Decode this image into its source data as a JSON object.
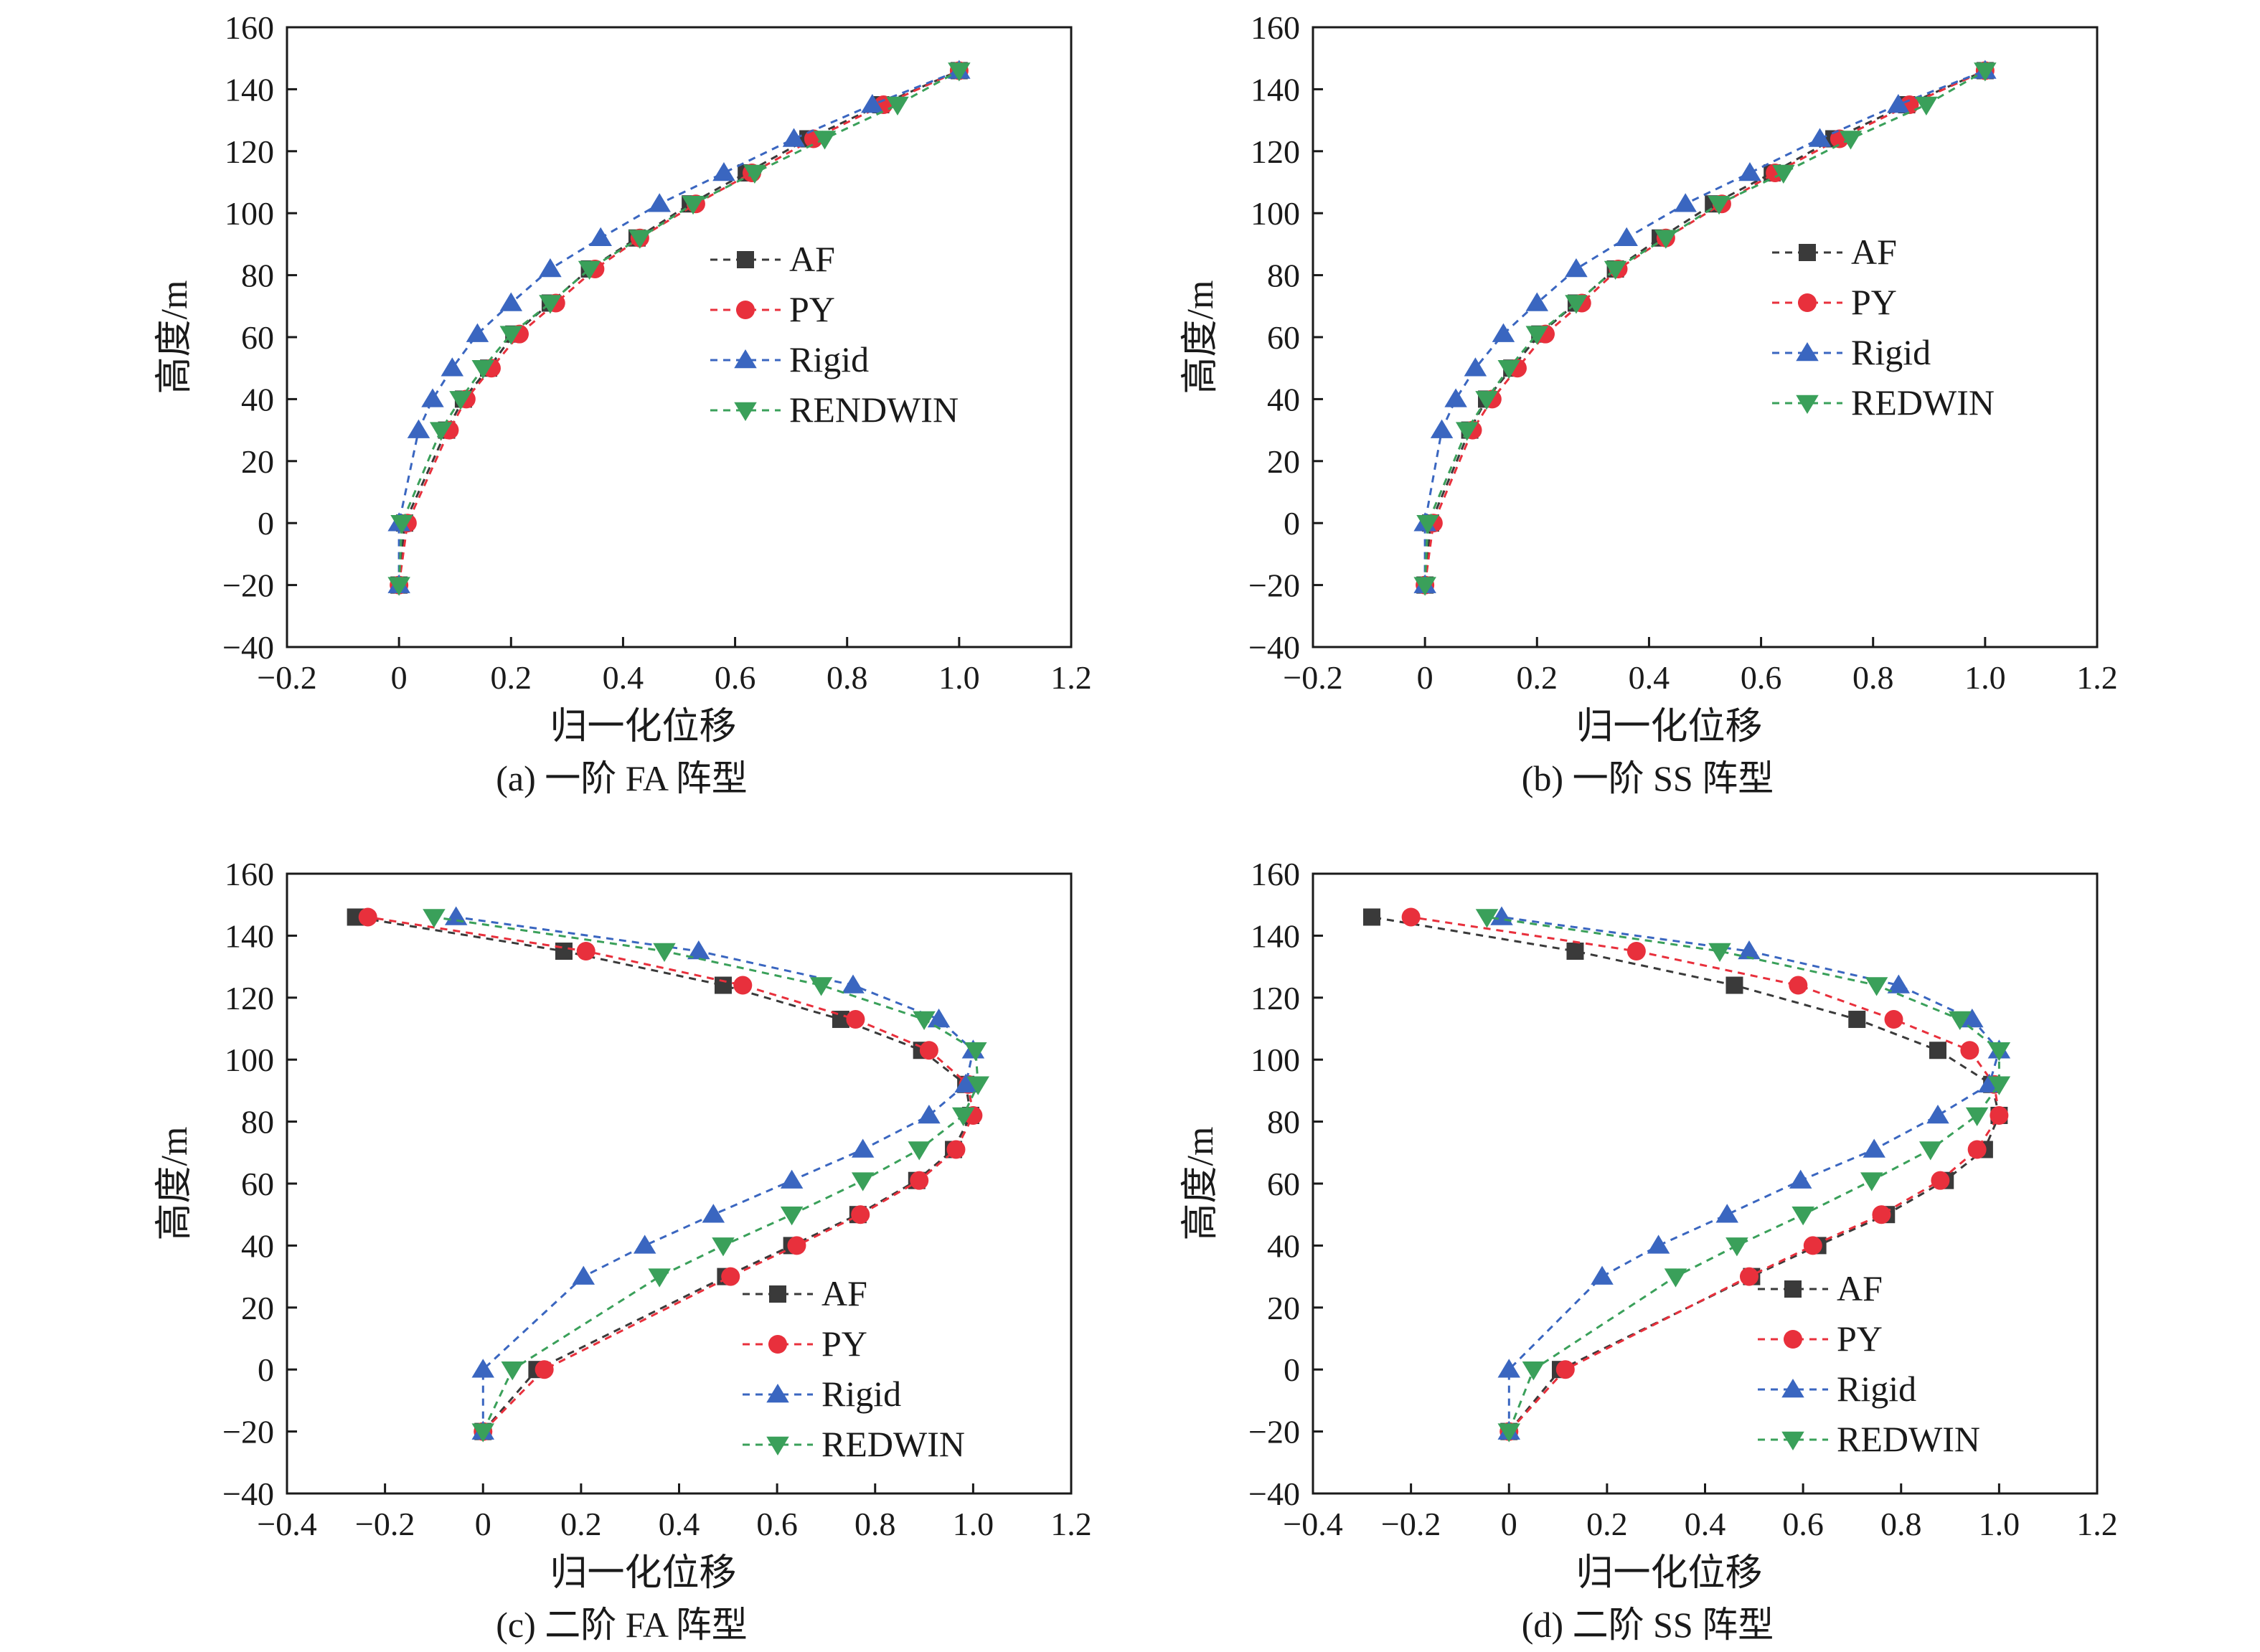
{
  "figure": {
    "series_styles": {
      "AF": {
        "color": "#3a3a3a",
        "marker": "square"
      },
      "PY": {
        "color": "#e8303c",
        "marker": "circle"
      },
      "Rigid": {
        "color": "#3a66c0",
        "marker": "triangle-up"
      },
      "RENDWIN": {
        "color": "#3aa05a",
        "marker": "triangle-down"
      },
      "REDWIN": {
        "color": "#3aa05a",
        "marker": "triangle-down"
      }
    }
  },
  "chart_data": [
    {
      "type": "line",
      "caption": "(a) 一阶 FA 阵型",
      "xlabel": "归一化位移",
      "ylabel": "高度/m",
      "xlim": [
        -0.2,
        1.2
      ],
      "ylim": [
        -40,
        160
      ],
      "xticks": [
        -0.2,
        0,
        0.2,
        0.4,
        0.6,
        0.8,
        1.0,
        1.2
      ],
      "xtick_labels": [
        "−0.2",
        "0",
        "0.2",
        "0.4",
        "0.6",
        "0.8",
        "1.0",
        "1.2"
      ],
      "yticks": [
        -40,
        -20,
        0,
        20,
        40,
        60,
        80,
        100,
        120,
        140,
        160
      ],
      "ytick_labels": [
        "−40",
        "−20",
        "0",
        "20",
        "40",
        "60",
        "80",
        "100",
        "120",
        "140",
        "160"
      ],
      "legend_position": "center-right",
      "y": [
        -20,
        0,
        30,
        40,
        50,
        61,
        71,
        82,
        92,
        103,
        113,
        124,
        135,
        146
      ],
      "series": [
        {
          "name": "AF",
          "x": [
            0.0,
            0.01,
            0.085,
            0.115,
            0.16,
            0.205,
            0.27,
            0.34,
            0.425,
            0.52,
            0.62,
            0.73,
            0.86,
            1.0
          ]
        },
        {
          "name": "PY",
          "x": [
            0.0,
            0.015,
            0.09,
            0.12,
            0.165,
            0.215,
            0.28,
            0.35,
            0.43,
            0.53,
            0.63,
            0.74,
            0.865,
            1.0
          ]
        },
        {
          "name": "Rigid",
          "x": [
            0.0,
            0.0,
            0.035,
            0.06,
            0.095,
            0.14,
            0.2,
            0.27,
            0.36,
            0.465,
            0.58,
            0.705,
            0.845,
            1.0
          ]
        },
        {
          "name": "RENDWIN",
          "x": [
            0.0,
            0.005,
            0.075,
            0.11,
            0.15,
            0.2,
            0.27,
            0.34,
            0.43,
            0.525,
            0.635,
            0.76,
            0.89,
            1.0
          ]
        }
      ]
    },
    {
      "type": "line",
      "caption": "(b) 一阶 SS 阵型",
      "xlabel": "归一化位移",
      "ylabel": "高度/m",
      "xlim": [
        -0.2,
        1.2
      ],
      "ylim": [
        -40,
        160
      ],
      "xticks": [
        -0.2,
        0,
        0.2,
        0.4,
        0.6,
        0.8,
        1.0,
        1.2
      ],
      "xtick_labels": [
        "−0.2",
        "0",
        "0.2",
        "0.4",
        "0.6",
        "0.8",
        "1.0",
        "1.2"
      ],
      "yticks": [
        -40,
        -20,
        0,
        20,
        40,
        60,
        80,
        100,
        120,
        140,
        160
      ],
      "ytick_labels": [
        "−40",
        "−20",
        "0",
        "20",
        "40",
        "60",
        "80",
        "100",
        "120",
        "140",
        "160"
      ],
      "legend_position": "center-right",
      "y": [
        -20,
        0,
        30,
        40,
        50,
        61,
        71,
        82,
        92,
        103,
        113,
        124,
        135,
        146
      ],
      "series": [
        {
          "name": "AF",
          "x": [
            0.0,
            0.01,
            0.08,
            0.11,
            0.155,
            0.205,
            0.27,
            0.34,
            0.42,
            0.515,
            0.62,
            0.73,
            0.86,
            1.0
          ]
        },
        {
          "name": "PY",
          "x": [
            0.0,
            0.015,
            0.085,
            0.12,
            0.165,
            0.215,
            0.28,
            0.345,
            0.43,
            0.53,
            0.625,
            0.74,
            0.865,
            1.0
          ]
        },
        {
          "name": "Rigid",
          "x": [
            0.0,
            0.0,
            0.03,
            0.055,
            0.09,
            0.14,
            0.2,
            0.27,
            0.36,
            0.465,
            0.58,
            0.705,
            0.845,
            1.0
          ]
        },
        {
          "name": "REDWIN",
          "x": [
            0.0,
            0.005,
            0.075,
            0.11,
            0.15,
            0.2,
            0.27,
            0.34,
            0.43,
            0.525,
            0.64,
            0.76,
            0.895,
            1.0
          ]
        }
      ]
    },
    {
      "type": "line",
      "caption": "(c) 二阶 FA 阵型",
      "xlabel": "归一化位移",
      "ylabel": "高度/m",
      "xlim": [
        -0.4,
        1.2
      ],
      "ylim": [
        -40,
        160
      ],
      "xticks": [
        -0.4,
        -0.2,
        0,
        0.2,
        0.4,
        0.6,
        0.8,
        1.0,
        1.2
      ],
      "xtick_labels": [
        "−0.4",
        "−0.2",
        "0",
        "0.2",
        "0.4",
        "0.6",
        "0.8",
        "1.0",
        "1.2"
      ],
      "yticks": [
        -40,
        -20,
        0,
        20,
        40,
        60,
        80,
        100,
        120,
        140,
        160
      ],
      "ytick_labels": [
        "−40",
        "−20",
        "0",
        "20",
        "40",
        "60",
        "80",
        "100",
        "120",
        "140",
        "160"
      ],
      "legend_position": "bottom-right",
      "y": [
        -20,
        0,
        30,
        40,
        50,
        61,
        71,
        82,
        92,
        103,
        113,
        124,
        135,
        146
      ],
      "series": [
        {
          "name": "AF",
          "x": [
            0.0,
            0.11,
            0.495,
            0.63,
            0.765,
            0.885,
            0.96,
            0.995,
            0.985,
            0.895,
            0.73,
            0.49,
            0.165,
            -0.26
          ]
        },
        {
          "name": "PY",
          "x": [
            0.0,
            0.125,
            0.505,
            0.64,
            0.77,
            0.89,
            0.965,
            1.0,
            0.99,
            0.91,
            0.76,
            0.53,
            0.21,
            -0.235
          ]
        },
        {
          "name": "Rigid",
          "x": [
            0.0,
            0.0,
            0.205,
            0.33,
            0.47,
            0.63,
            0.775,
            0.91,
            0.985,
            1.0,
            0.93,
            0.755,
            0.44,
            -0.055
          ]
        },
        {
          "name": "REDWIN",
          "x": [
            0.0,
            0.06,
            0.36,
            0.49,
            0.63,
            0.775,
            0.89,
            0.98,
            1.01,
            1.005,
            0.9,
            0.69,
            0.37,
            -0.1
          ]
        }
      ]
    },
    {
      "type": "line",
      "caption": "(d) 二阶 SS 阵型",
      "xlabel": "归一化位移",
      "ylabel": "高度/m",
      "xlim": [
        -0.4,
        1.2
      ],
      "ylim": [
        -40,
        160
      ],
      "xticks": [
        -0.4,
        -0.2,
        0,
        0.2,
        0.4,
        0.6,
        0.8,
        1.0,
        1.2
      ],
      "xtick_labels": [
        "−0.4",
        "−0.2",
        "0",
        "0.2",
        "0.4",
        "0.6",
        "0.8",
        "1.0",
        "1.2"
      ],
      "yticks": [
        -40,
        -20,
        0,
        20,
        40,
        60,
        80,
        100,
        120,
        140,
        160
      ],
      "ytick_labels": [
        "−40",
        "−20",
        "0",
        "20",
        "40",
        "60",
        "80",
        "100",
        "120",
        "140",
        "160"
      ],
      "legend_position": "bottom-right",
      "y": [
        -20,
        0,
        30,
        40,
        50,
        61,
        71,
        82,
        92,
        103,
        113,
        124,
        135,
        146
      ],
      "series": [
        {
          "name": "AF",
          "x": [
            0.0,
            0.105,
            0.495,
            0.63,
            0.77,
            0.89,
            0.97,
            1.0,
            0.985,
            0.875,
            0.71,
            0.46,
            0.135,
            -0.28
          ]
        },
        {
          "name": "PY",
          "x": [
            0.0,
            0.115,
            0.49,
            0.62,
            0.76,
            0.88,
            0.955,
            1.0,
            0.99,
            0.94,
            0.785,
            0.59,
            0.26,
            -0.2
          ]
        },
        {
          "name": "Rigid",
          "x": [
            0.0,
            0.0,
            0.19,
            0.305,
            0.445,
            0.595,
            0.745,
            0.875,
            0.98,
            1.0,
            0.945,
            0.795,
            0.49,
            -0.015
          ]
        },
        {
          "name": "REDWIN",
          "x": [
            0.0,
            0.05,
            0.34,
            0.465,
            0.6,
            0.74,
            0.86,
            0.955,
            1.0,
            1.0,
            0.92,
            0.75,
            0.43,
            -0.045
          ]
        }
      ]
    }
  ]
}
